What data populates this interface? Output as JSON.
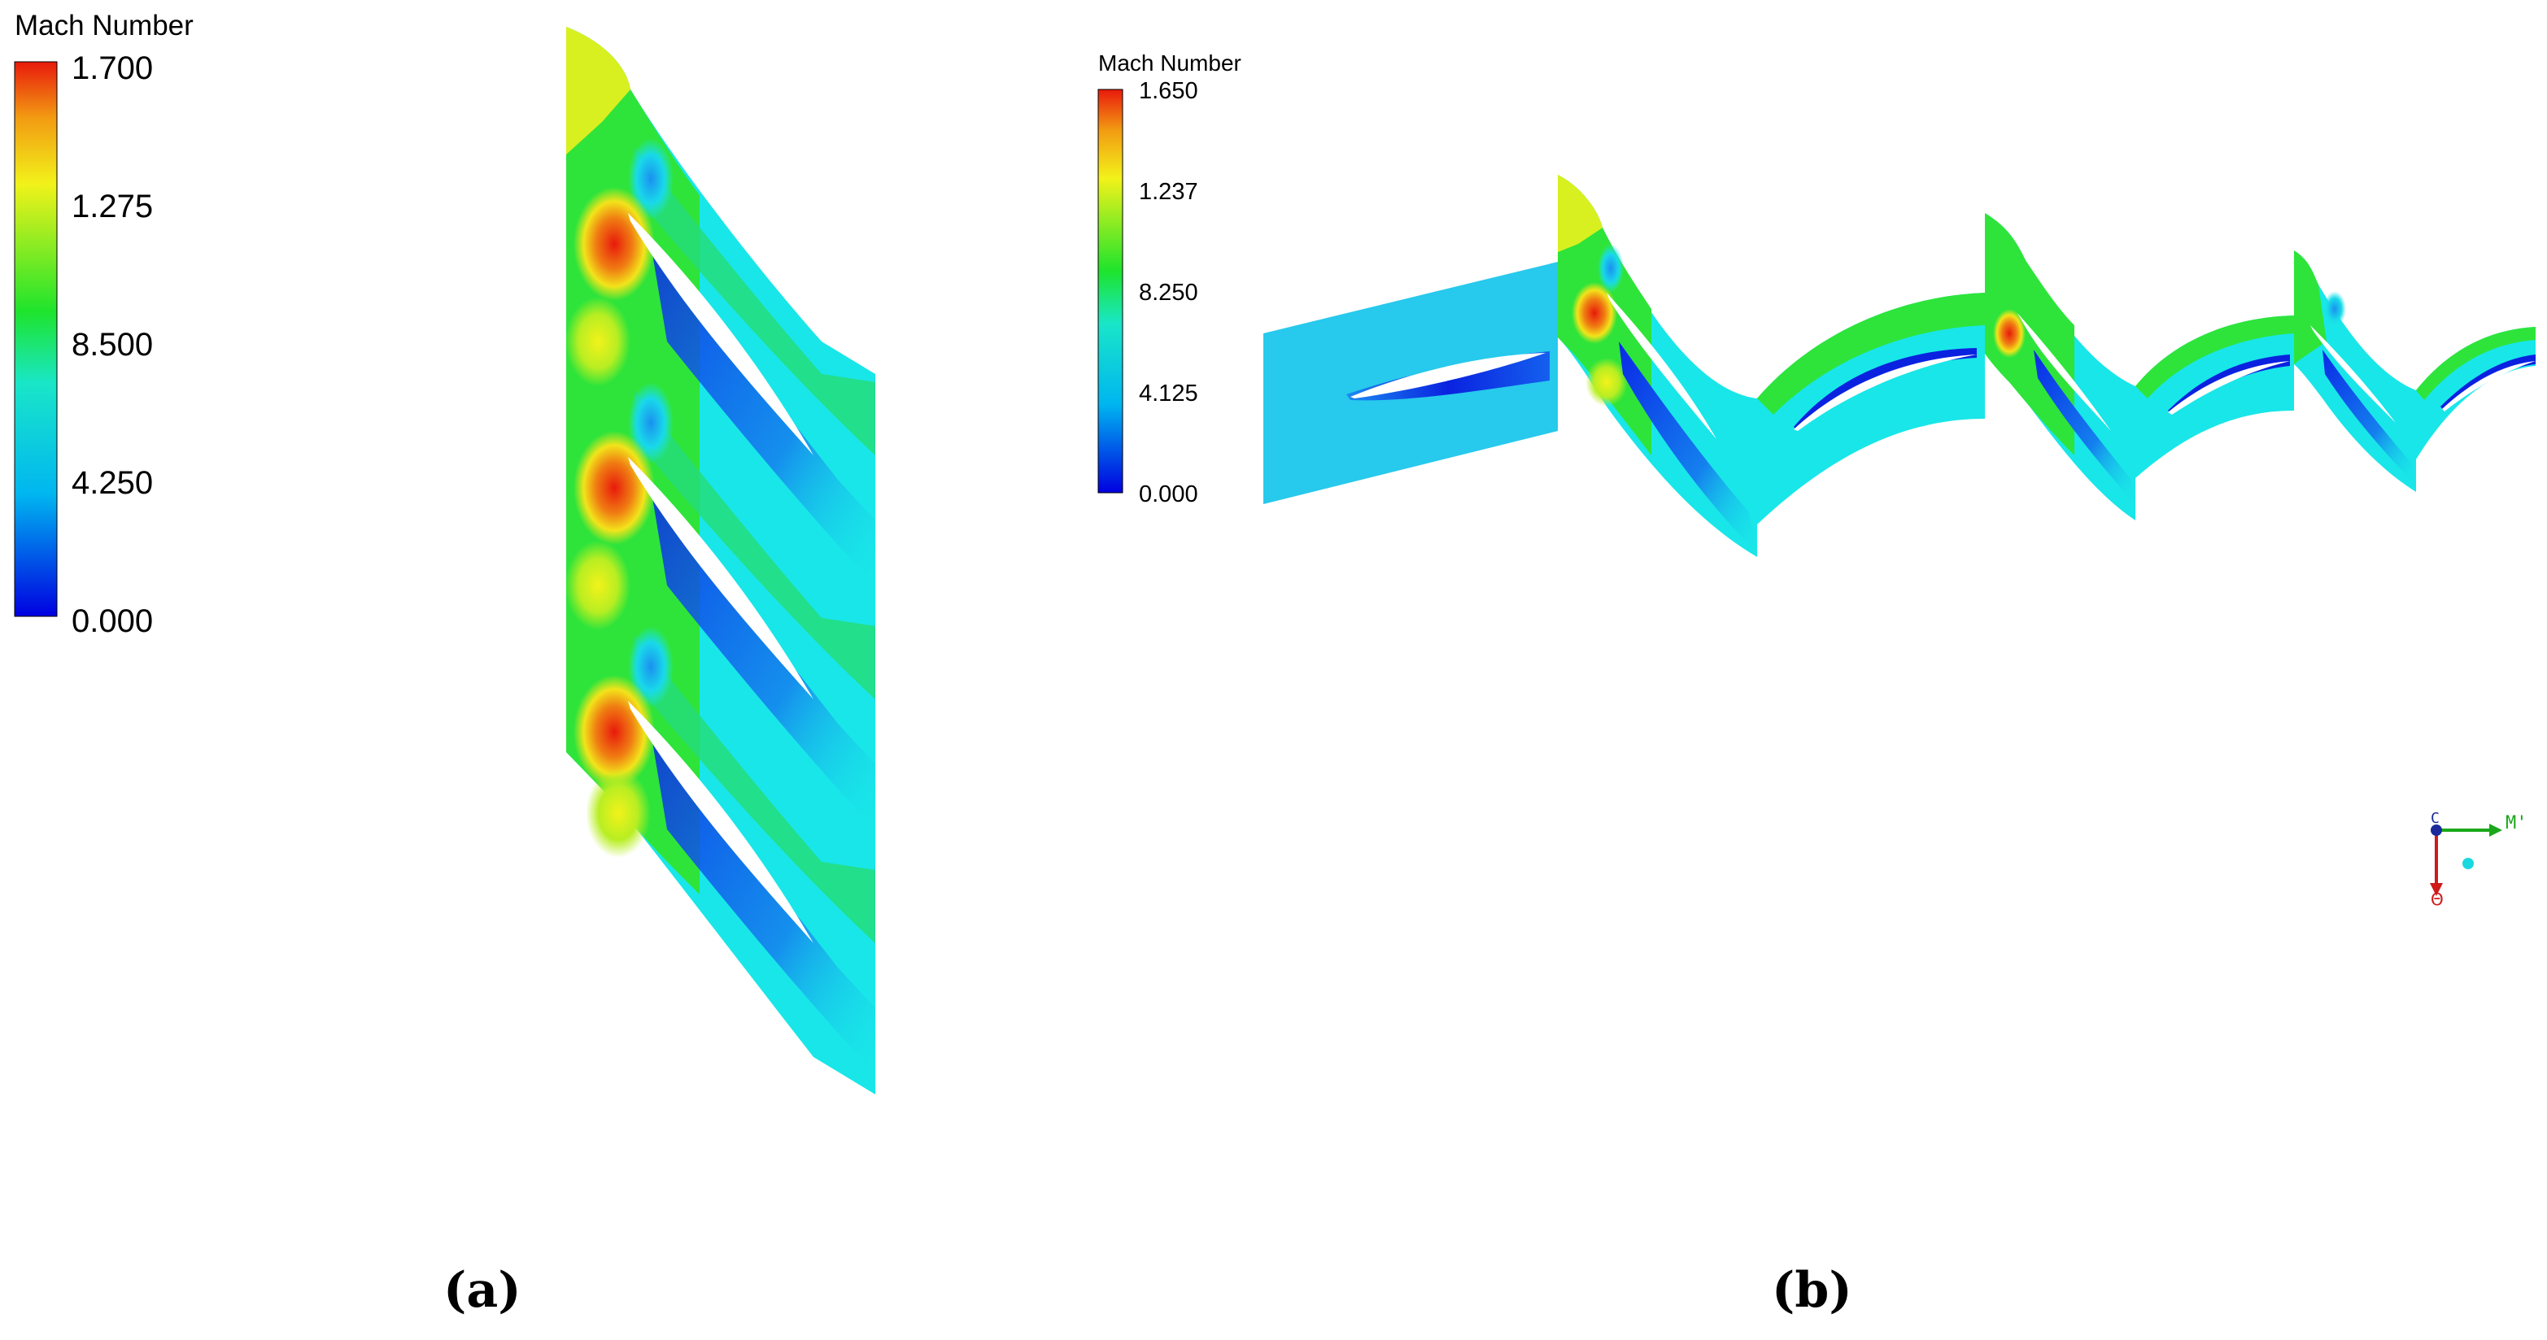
{
  "panel_a": {
    "legend": {
      "title": "Mach Number",
      "ticks": [
        "1.700",
        "1.275",
        "8.500",
        "4.250",
        "0.000"
      ]
    },
    "caption": "(a)"
  },
  "panel_b": {
    "legend": {
      "title": "Mach Number",
      "ticks": [
        "1.650",
        "1.237",
        "8.250",
        "4.125",
        "0.000"
      ]
    },
    "caption": "(b)",
    "axis_triad": {
      "x_label": "M'",
      "y_label": "Θ",
      "origin_label": "C"
    }
  },
  "colors": {
    "blue": "#0a1ee0",
    "cyan": "#19e6e8",
    "green": "#2ee43a",
    "yellow": "#f2f21a",
    "red": "#e81a0c"
  }
}
